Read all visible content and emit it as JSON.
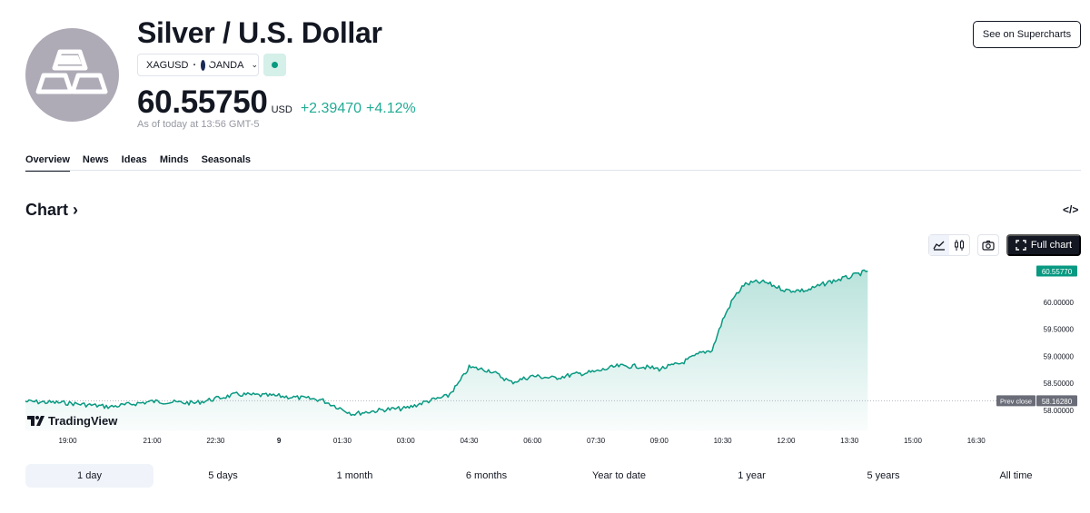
{
  "header": {
    "title": "Silver / U.S. Dollar",
    "symbol": "XAGUSD",
    "exchange": "OANDA",
    "price": "60.55750",
    "currency": "USD",
    "change": "+2.39470",
    "change_pct": "+4.12%",
    "as_of": "As of today at 13:56 GMT-5",
    "see_button": "See on Supercharts",
    "logo_icon": "silver-bars-icon"
  },
  "tabs": [
    {
      "label": "Overview",
      "active": true
    },
    {
      "label": "News"
    },
    {
      "label": "Ideas"
    },
    {
      "label": "Minds"
    },
    {
      "label": "Seasonals"
    }
  ],
  "chart_section": {
    "heading": "Chart",
    "embed_icon": "code-embed-icon",
    "full_chart": "Full chart",
    "tools": [
      "area-chart-icon",
      "candles-icon",
      "camera-icon",
      "fullscreen-icon"
    ],
    "brand": "TradingView",
    "current_label": "60.55770",
    "prev_close_label": "Prev close",
    "prev_close_value": "58.16280"
  },
  "colors": {
    "accent_green": "#089981",
    "price_green": "#22ab94",
    "text": "#131722",
    "muted": "#9598a1"
  },
  "chart_data": {
    "type": "area",
    "x": [
      "18:00",
      "19:00",
      "20:00",
      "21:00",
      "22:00",
      "23:00",
      "00:00",
      "01:00",
      "01:45",
      "02:30",
      "03:00",
      "03:30",
      "04:00",
      "04:15",
      "04:30",
      "05:00",
      "05:30",
      "06:00",
      "06:30",
      "07:00",
      "07:30",
      "08:00",
      "08:30",
      "09:00",
      "09:30",
      "10:00",
      "10:15",
      "10:30",
      "10:45",
      "11:00",
      "11:15",
      "11:30",
      "12:00",
      "12:30",
      "13:00",
      "13:30",
      "13:56"
    ],
    "y": [
      58.15,
      58.12,
      58.05,
      58.15,
      58.12,
      58.28,
      58.25,
      58.18,
      57.92,
      58.0,
      58.02,
      58.15,
      58.25,
      58.48,
      58.78,
      58.72,
      58.5,
      58.62,
      58.58,
      58.65,
      58.7,
      58.8,
      58.8,
      58.75,
      58.85,
      59.05,
      59.1,
      59.65,
      60.05,
      60.3,
      60.35,
      60.35,
      60.2,
      60.2,
      60.35,
      60.45,
      60.5577
    ],
    "ylim": [
      57.8,
      60.7
    ],
    "y_ticks": [
      "60.00000",
      "59.50000",
      "59.00000",
      "58.50000",
      "58.00000"
    ],
    "y_tick_values": [
      60.0,
      59.5,
      59.0,
      58.5,
      58.0
    ],
    "x_ticks": [
      "19:00",
      "21:00",
      "22:30",
      "9",
      "01:30",
      "03:00",
      "04:30",
      "06:00",
      "07:30",
      "09:00",
      "10:30",
      "12:00",
      "13:30",
      "15:00",
      "16:30"
    ],
    "x_tick_times": [
      "19:00",
      "21:00",
      "22:30",
      "00:00",
      "01:30",
      "03:00",
      "04:30",
      "06:00",
      "07:30",
      "09:00",
      "10:30",
      "12:00",
      "13:30",
      "15:00",
      "16:30"
    ],
    "x_range": [
      "18:00",
      "17:00"
    ],
    "prev_close": 58.1628,
    "last_value": 60.5577,
    "grid": false
  },
  "ranges": [
    {
      "label": "1 day",
      "active": true
    },
    {
      "label": "5 days"
    },
    {
      "label": "1 month"
    },
    {
      "label": "6 months"
    },
    {
      "label": "Year to date"
    },
    {
      "label": "1 year"
    },
    {
      "label": "5 years"
    },
    {
      "label": "All time"
    }
  ]
}
